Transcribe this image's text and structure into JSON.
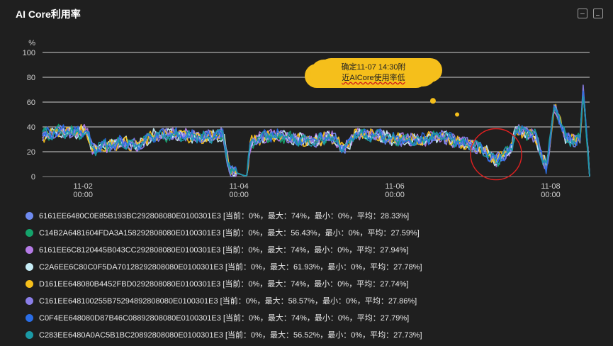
{
  "panel": {
    "title": "AI Core利用率"
  },
  "toolbar": [
    {
      "icon": "image-icon"
    },
    {
      "icon": "file-icon"
    }
  ],
  "annotation": {
    "line1": "确定11-07 14:30附",
    "line2": "近AICore使用率低"
  },
  "chart_data": {
    "type": "line",
    "ylabel": "%",
    "ylim": [
      0,
      100
    ],
    "yticks": [
      0,
      20,
      40,
      60,
      80,
      100
    ],
    "xticks": [
      {
        "date": "11-02",
        "time": "00:00",
        "x": 1
      },
      {
        "date": "11-04",
        "time": "00:00",
        "x": 3
      },
      {
        "date": "11-06",
        "time": "00:00",
        "x": 5
      },
      {
        "date": "11-08",
        "time": "00:00",
        "x": 7
      }
    ],
    "xlim": [
      0.48,
      7.5
    ],
    "grid": true,
    "legend_position": "bottom",
    "series": [
      {
        "name": "6161EE6480C0E85B193BC292808080E0100301E3",
        "stats": "[当前：0%，最大：74%，最小：0%，平均：28.33%]",
        "color": "#6f8bf0"
      },
      {
        "name": "C14B2A6481604FDA3A158292808080E0100301E3",
        "stats": "[当前：0%，最大：56.43%，最小：0%，平均：27.59%]",
        "color": "#14a36b"
      },
      {
        "name": "6161EE6C8120445B043CC292808080E0100301E3",
        "stats": "[当前：0%，最大：74%，最小：0%，平均：27.94%]",
        "color": "#b57be6"
      },
      {
        "name": "C2A6EE6C80C0F5DA70128292808080E0100301E3",
        "stats": "[当前：0%，最大：61.93%，最小：0%，平均：27.78%]",
        "color": "#c6ecf5"
      },
      {
        "name": "D161EE648080B4452FBD0292808080E0100301E3",
        "stats": "[当前：0%，最大：74%，最小：0%，平均：27.74%]",
        "color": "#f5bf1b"
      },
      {
        "name": "C161EE648100255B75294892808080E0100301E3",
        "stats": "[当前：0%，最大：58.57%，最小：0%，平均：27.86%]",
        "color": "#8a7ee8"
      },
      {
        "name": "C0F4EE648080D87B46C08892808080E0100301E3",
        "stats": "[当前：0%，最大：74%，最小：0%，平均：27.79%]",
        "color": "#2a6de6"
      },
      {
        "name": "C283EE6480A0AC5B1BC20892808080E0100301E3",
        "stats": "[当前：0%，最大：56.52%，最小：0%，平均：27.73%]",
        "color": "#1b9aa6"
      }
    ],
    "profile": [
      [
        0.48,
        33
      ],
      [
        0.7,
        37
      ],
      [
        0.9,
        35
      ],
      [
        1.05,
        37
      ],
      [
        1.12,
        22
      ],
      [
        1.5,
        28
      ],
      [
        1.7,
        25
      ],
      [
        1.9,
        33
      ],
      [
        2.3,
        34
      ],
      [
        2.5,
        31
      ],
      [
        2.8,
        34
      ],
      [
        2.88,
        5
      ],
      [
        3.1,
        0
      ],
      [
        3.15,
        28
      ],
      [
        3.4,
        34
      ],
      [
        3.75,
        30
      ],
      [
        4.0,
        29
      ],
      [
        4.2,
        32
      ],
      [
        4.35,
        22
      ],
      [
        4.5,
        34
      ],
      [
        4.8,
        33
      ],
      [
        5.0,
        30
      ],
      [
        5.3,
        29
      ],
      [
        5.6,
        33
      ],
      [
        5.8,
        28
      ],
      [
        6.1,
        23
      ],
      [
        6.3,
        13
      ],
      [
        6.5,
        22
      ],
      [
        6.55,
        38
      ],
      [
        6.8,
        33
      ],
      [
        6.95,
        6
      ],
      [
        7.05,
        58
      ],
      [
        7.2,
        30
      ],
      [
        7.38,
        29
      ],
      [
        7.42,
        72
      ],
      [
        7.5,
        0
      ]
    ],
    "scatter_points": [
      {
        "x": 5.49,
        "y": 61
      },
      {
        "x": 5.8,
        "y": 50
      }
    ]
  }
}
